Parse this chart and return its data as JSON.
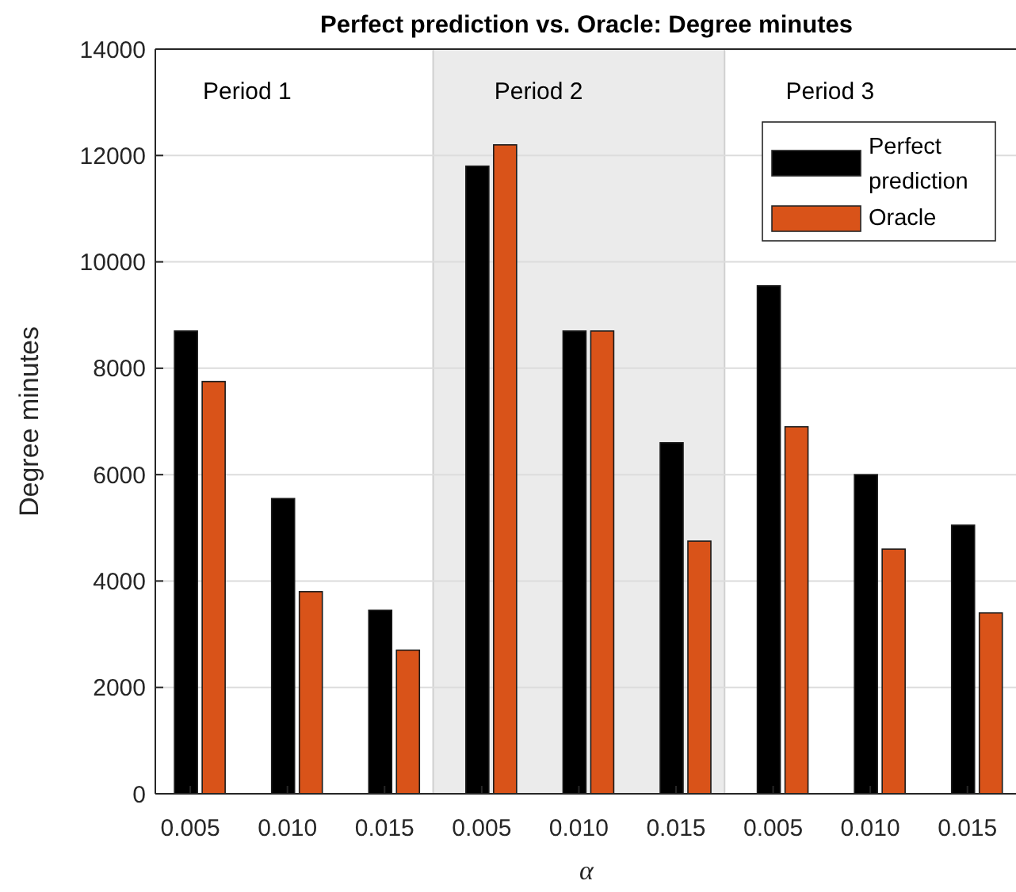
{
  "chart_data": {
    "type": "bar",
    "title": "Perfect prediction vs. Oracle: Degree minutes",
    "xlabel": "α",
    "ylabel": "Degree minutes",
    "categories": [
      "0.005",
      "0.010",
      "0.015",
      "0.005",
      "0.010",
      "0.015",
      "0.005",
      "0.010",
      "0.015"
    ],
    "series": [
      {
        "name": "Perfect prediction",
        "color": "#000000",
        "values": [
          8700,
          5550,
          3450,
          11800,
          8700,
          6600,
          9550,
          6000,
          5050
        ]
      },
      {
        "name": "Oracle",
        "color": "#d95319",
        "values": [
          7750,
          3800,
          2700,
          12200,
          8700,
          4750,
          6900,
          4600,
          3400
        ]
      }
    ],
    "ylim": [
      0,
      14000
    ],
    "yticks": [
      0,
      2000,
      4000,
      6000,
      8000,
      10000,
      12000,
      14000
    ],
    "annotations": [
      "Period 1",
      "Period 2",
      "Period 3"
    ],
    "grid": "y",
    "legend": "top right"
  }
}
